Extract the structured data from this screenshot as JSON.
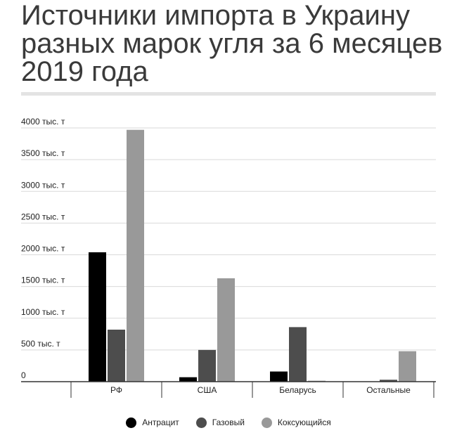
{
  "header": {
    "title": "Источники импорта в Украину разных марок угля за 6 месяцев 2019 года"
  },
  "chart_data": {
    "type": "bar",
    "categories": [
      "РФ",
      "США",
      "Беларусь",
      "Остальные"
    ],
    "series": [
      {
        "name": "Антрацит",
        "color": "#000000",
        "values": [
          2040,
          70,
          160,
          0
        ]
      },
      {
        "name": "Газовый",
        "color": "#4d4d4d",
        "values": [
          820,
          500,
          860,
          30
        ]
      },
      {
        "name": "Коксующийся",
        "color": "#999999",
        "values": [
          3970,
          1630,
          15,
          480
        ]
      }
    ],
    "y_ticks": [
      {
        "value": 0,
        "label": "0"
      },
      {
        "value": 500,
        "label": "500 тыс. т"
      },
      {
        "value": 1000,
        "label": "1000 тыс. т"
      },
      {
        "value": 1500,
        "label": "1500 тыс. т"
      },
      {
        "value": 2000,
        "label": "2000 тыс. т"
      },
      {
        "value": 2500,
        "label": "2500 тыс. т"
      },
      {
        "value": 3000,
        "label": "3000 тыс. т"
      },
      {
        "value": 3500,
        "label": "3500 тыс. т"
      },
      {
        "value": 4000,
        "label": "4000 тыс. т"
      }
    ],
    "ylim": [
      0,
      4000
    ],
    "grid": true,
    "legend_position": "bottom-center"
  }
}
